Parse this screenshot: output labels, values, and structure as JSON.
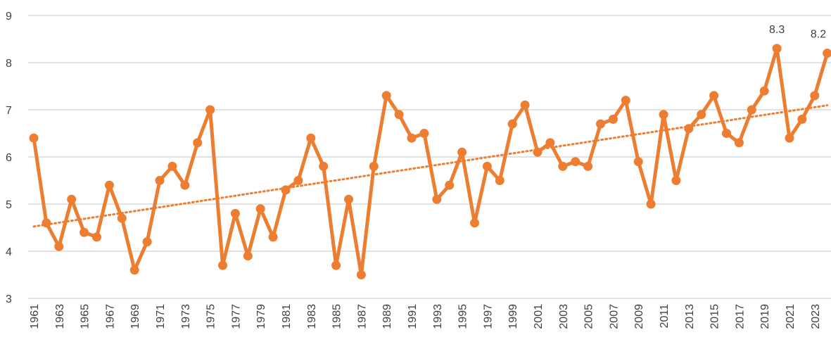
{
  "chart_data": {
    "type": "line",
    "categories": [
      "1961",
      null,
      "1963",
      null,
      "1965",
      null,
      "1967",
      null,
      "1969",
      null,
      "1971",
      null,
      "1973",
      null,
      "1975",
      null,
      "1977",
      null,
      "1979",
      null,
      "1981",
      null,
      "1983",
      null,
      "1985",
      null,
      "1987",
      null,
      "1989",
      null,
      "1991",
      null,
      "1993",
      null,
      "1995",
      null,
      "1997",
      null,
      "1999",
      null,
      "2001",
      null,
      "2003",
      null,
      "2005",
      null,
      "2007",
      null,
      "2009",
      null,
      "2011",
      null,
      "2013",
      null,
      "2015",
      null,
      "2017",
      null,
      "2019",
      null,
      "2021",
      null,
      "2023",
      null
    ],
    "series": [
      {
        "color": "#ED7D31",
        "values": [
          6.4,
          4.6,
          4.1,
          5.1,
          4.4,
          4.3,
          5.4,
          4.7,
          3.6,
          4.2,
          5.5,
          5.8,
          5.4,
          6.3,
          7.0,
          3.7,
          4.8,
          3.9,
          4.9,
          4.3,
          5.3,
          5.5,
          6.4,
          5.8,
          3.7,
          5.1,
          3.5,
          5.8,
          7.3,
          6.9,
          6.4,
          6.5,
          5.1,
          5.4,
          6.1,
          4.6,
          5.8,
          5.5,
          6.7,
          7.1,
          6.1,
          6.3,
          5.8,
          5.9,
          5.8,
          6.7,
          6.8,
          7.2,
          5.9,
          5.0,
          6.9,
          5.5,
          6.6,
          6.9,
          7.3,
          6.5,
          6.3,
          7.0,
          7.4,
          8.3,
          6.4,
          6.8,
          7.3,
          8.2
        ],
        "value_labels": [
          null,
          null,
          null,
          null,
          null,
          null,
          null,
          null,
          null,
          null,
          null,
          null,
          null,
          null,
          null,
          null,
          null,
          null,
          null,
          null,
          null,
          null,
          null,
          null,
          null,
          null,
          null,
          null,
          null,
          null,
          null,
          null,
          null,
          null,
          null,
          null,
          null,
          null,
          null,
          null,
          null,
          null,
          null,
          null,
          null,
          null,
          null,
          null,
          null,
          null,
          null,
          null,
          null,
          null,
          null,
          null,
          null,
          null,
          null,
          "8.3",
          null,
          null,
          null,
          "8.2"
        ]
      }
    ],
    "ylim": [
      3,
      9
    ],
    "yticks": [
      3,
      4,
      5,
      6,
      7,
      8,
      9
    ],
    "grid": true,
    "trendline": "linear"
  }
}
